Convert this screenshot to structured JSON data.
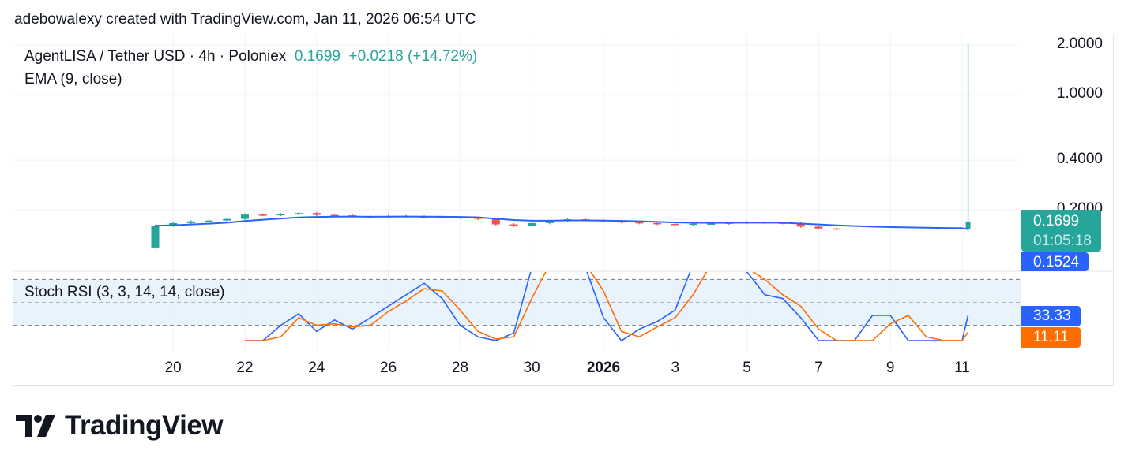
{
  "credit": "adebowalexy created with TradingView.com, Jan 11, 2026 06:54 UTC",
  "legend": {
    "symbol": "AgentLISA / Tether USD · 4h · Poloniex",
    "price": "0.1699",
    "change": "+0.0218 (+14.72%)",
    "ema": "EMA (9, close)",
    "stoch": "Stoch RSI (3, 3, 14, 14, close)"
  },
  "tags": {
    "last_price": "0.1699",
    "countdown": "01:05:18",
    "ema_value": "0.1524",
    "k_value": "33.33",
    "d_value": "11.11"
  },
  "colors": {
    "up": "#26a69a",
    "down": "#ef5350",
    "ema": "#2962ff",
    "k": "#2962ff",
    "d": "#ff6d00",
    "band": "#e3f0fd"
  },
  "logo": "TradingView",
  "chart_data": [
    {
      "type": "candlestick",
      "scale": "log",
      "yticks": [
        "2.0000",
        "1.0000",
        "0.4000",
        "0.2000"
      ],
      "ytick_values": [
        2.0,
        1.0,
        0.4,
        0.2
      ],
      "xticks": [
        "20",
        "22",
        "24",
        "26",
        "28",
        "30",
        "2026",
        "3",
        "5",
        "7",
        "9",
        "11"
      ],
      "xtick_dates": [
        "2025-12-20",
        "2025-12-22",
        "2025-12-24",
        "2025-12-26",
        "2025-12-28",
        "2025-12-30",
        "2026-01-01",
        "2026-01-03",
        "2026-01-05",
        "2026-01-07",
        "2026-01-09",
        "2026-01-11"
      ],
      "start": "2025-12-19T12:00",
      "interval_hours": 12,
      "closes": [
        0.16,
        0.166,
        0.17,
        0.172,
        0.176,
        0.187,
        0.186,
        0.188,
        0.191,
        0.186,
        0.185,
        0.182,
        0.18,
        0.183,
        0.182,
        0.181,
        0.18,
        0.179,
        0.176,
        0.163,
        0.16,
        0.166,
        0.171,
        0.175,
        0.173,
        0.17,
        0.168,
        0.166,
        0.164,
        0.162,
        0.165,
        0.165,
        0.167,
        0.168,
        0.167,
        0.166,
        0.158,
        0.154,
        0.153,
        0.153,
        0.153,
        0.153,
        0.153,
        0.153,
        0.153,
        0.153
      ],
      "first_open": 0.118,
      "last_candle": {
        "time": "2026-01-11T04:00",
        "open": 0.153,
        "high": 2.05,
        "low": 0.146,
        "close": 0.1699
      },
      "ema_period": 9
    },
    {
      "type": "line",
      "title": "Stoch RSI (3, 3, 14, 14, close)",
      "levels": [
        80,
        50,
        20
      ],
      "start": "2025-12-22T00:00",
      "interval_hours": 12,
      "series": [
        {
          "key": "k",
          "values": [
            0,
            0,
            20,
            35,
            12,
            27,
            15,
            30,
            45,
            60,
            75,
            55,
            20,
            5,
            0,
            10,
            95,
            100,
            100,
            95,
            30,
            0,
            15,
            25,
            40,
            100,
            100,
            95,
            90,
            60,
            55,
            30,
            0,
            0,
            0,
            33,
            33,
            0,
            0,
            0,
            0,
            33.33
          ]
        },
        {
          "key": "d",
          "values": [
            0,
            0,
            5,
            30,
            20,
            22,
            18,
            20,
            38,
            52,
            68,
            65,
            40,
            12,
            2,
            5,
            55,
            100,
            100,
            100,
            65,
            12,
            5,
            18,
            30,
            60,
            100,
            100,
            95,
            80,
            60,
            45,
            15,
            0,
            0,
            0,
            22,
            33,
            5,
            0,
            0,
            11.11
          ]
        }
      ]
    }
  ]
}
